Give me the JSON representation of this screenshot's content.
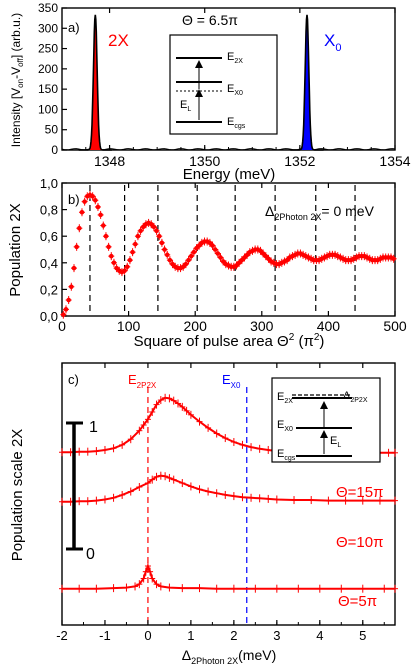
{
  "chart_data": [
    {
      "panel": "a)",
      "type": "line",
      "xlabel": "Energy (meV)",
      "ylabel": "Intensity [V_on−V_off] (arb.u.)",
      "xlim": [
        1347,
        1354
      ],
      "ylim": [
        0,
        350
      ],
      "xticks": [
        1348,
        1350,
        1352,
        1354
      ],
      "yticks": [
        0,
        50,
        100,
        150,
        200,
        250,
        300,
        350
      ],
      "grid": false,
      "series": [
        {
          "name": "2X",
          "color": "#ff0000",
          "fill": true,
          "peak_x": 1347.7,
          "peak_y": 333,
          "width": 0.09
        },
        {
          "name": "X0",
          "color": "#0000ff",
          "fill": true,
          "peak_x": 1352.15,
          "peak_y": 333,
          "width": 0.09
        }
      ],
      "peak_labels": [
        {
          "text": "2X",
          "x": 1348.15,
          "y": 300,
          "color": "#ff0000"
        },
        {
          "text": "X",
          "sub": "0",
          "x": 1352.6,
          "y": 300,
          "color": "#0000ff"
        }
      ],
      "inset": {
        "title": "Θ = 6.5π",
        "levels": [
          "E",
          "E",
          "E"
        ],
        "level_subs": [
          "2X",
          "X0",
          "cgs"
        ],
        "laser_label": "E",
        "laser_sub": "L"
      }
    },
    {
      "panel": "b)",
      "type": "scatter",
      "xlabel": "Square of pulse area Θ² (π²)",
      "ylabel": "Population 2X",
      "xlim": [
        0,
        500
      ],
      "ylim": [
        0,
        1.0
      ],
      "xticks": [
        0,
        100,
        200,
        300,
        400,
        500
      ],
      "yticks": [
        "0,0",
        "0,2",
        "0,4",
        "0,6",
        "0,8",
        "1,0"
      ],
      "ytick_values": [
        0,
        0.2,
        0.4,
        0.6,
        0.8,
        1.0
      ],
      "annotation": "Δ2Photon 2X= 0 meV",
      "annotation_main": "Δ",
      "annotation_sub": "2Photon 2X",
      "annotation_rest": "= 0 meV",
      "color": "#ff0000",
      "dashed_vlines": [
        42,
        94,
        144,
        203,
        260,
        320,
        381,
        440
      ],
      "x": [
        2,
        6,
        10,
        14,
        18,
        22,
        26,
        30,
        34,
        38,
        42,
        46,
        50,
        54,
        58,
        62,
        66,
        70,
        74,
        78,
        82,
        86,
        90,
        94,
        98,
        102,
        106,
        110,
        114,
        118,
        122,
        126,
        130,
        134,
        138,
        142,
        146,
        150,
        154,
        158,
        162,
        166,
        170,
        174,
        178,
        182,
        186,
        190,
        194,
        198,
        202,
        206,
        210,
        214,
        218,
        222,
        226,
        230,
        234,
        238,
        242,
        246,
        250,
        254,
        258,
        262,
        266,
        270,
        274,
        278,
        282,
        286,
        290,
        294,
        298,
        302,
        306,
        310,
        314,
        318,
        322,
        326,
        330,
        334,
        338,
        342,
        346,
        350,
        354,
        358,
        362,
        366,
        370,
        374,
        378,
        382,
        386,
        390,
        394,
        398,
        402,
        406,
        410,
        414,
        418,
        422,
        426,
        430,
        434,
        438,
        442,
        446,
        450,
        454,
        458,
        462,
        466,
        470,
        474,
        478,
        482,
        486,
        490,
        494,
        498
      ],
      "y": [
        0.01,
        0.05,
        0.12,
        0.22,
        0.36,
        0.52,
        0.66,
        0.78,
        0.86,
        0.9,
        0.91,
        0.9,
        0.87,
        0.82,
        0.76,
        0.68,
        0.6,
        0.52,
        0.45,
        0.4,
        0.36,
        0.34,
        0.33,
        0.34,
        0.37,
        0.42,
        0.48,
        0.54,
        0.6,
        0.64,
        0.67,
        0.69,
        0.7,
        0.69,
        0.67,
        0.64,
        0.6,
        0.55,
        0.5,
        0.46,
        0.42,
        0.39,
        0.37,
        0.36,
        0.36,
        0.37,
        0.39,
        0.42,
        0.45,
        0.48,
        0.51,
        0.53,
        0.55,
        0.56,
        0.56,
        0.55,
        0.53,
        0.5,
        0.47,
        0.44,
        0.41,
        0.39,
        0.38,
        0.37,
        0.37,
        0.38,
        0.4,
        0.42,
        0.44,
        0.46,
        0.48,
        0.49,
        0.5,
        0.5,
        0.49,
        0.47,
        0.45,
        0.43,
        0.41,
        0.4,
        0.39,
        0.39,
        0.4,
        0.41,
        0.42,
        0.44,
        0.45,
        0.46,
        0.47,
        0.47,
        0.46,
        0.45,
        0.44,
        0.43,
        0.42,
        0.42,
        0.42,
        0.43,
        0.44,
        0.45,
        0.46,
        0.46,
        0.46,
        0.45,
        0.44,
        0.43,
        0.42,
        0.42,
        0.42,
        0.43,
        0.44,
        0.45,
        0.45,
        0.45,
        0.44,
        0.43,
        0.42,
        0.42,
        0.42,
        0.43,
        0.44,
        0.44,
        0.44,
        0.44,
        0.43
      ]
    },
    {
      "panel": "c)",
      "type": "line",
      "xlabel": "Δ2Photon 2X(meV)",
      "xlabel_main": "Δ",
      "xlabel_sub": "2Photon 2X",
      "xlabel_rest": "(meV)",
      "ylabel": "Population scale 2X",
      "xlim": [
        -2,
        5.75
      ],
      "xticks": [
        -2,
        -1,
        0,
        1,
        2,
        3,
        4,
        5
      ],
      "color": "#ff0000",
      "scale_bar": {
        "top_label": "1",
        "bottom_label": "0",
        "top": 1.0,
        "bottom": 0.0
      },
      "vlines": [
        {
          "x": 0,
          "label": "E",
          "sub": "2P2X",
          "color": "#ff0000"
        },
        {
          "x": 2.3,
          "label": "E",
          "sub": "X0",
          "color": "#0000ff"
        }
      ],
      "series": [
        {
          "name": "Θ=15π",
          "label_main": "Θ=15π",
          "offset": 1.5,
          "x": [
            -2,
            -1.8,
            -1.6,
            -1.4,
            -1.2,
            -1.0,
            -0.8,
            -0.6,
            -0.4,
            -0.2,
            -0.1,
            0,
            0.1,
            0.2,
            0.3,
            0.4,
            0.5,
            0.6,
            0.7,
            0.8,
            0.9,
            1.0,
            1.2,
            1.4,
            1.6,
            1.8,
            2.0,
            2.2,
            2.4,
            2.6,
            2.8,
            3.0,
            3.3,
            3.6,
            4.0,
            4.4,
            4.8,
            5.2,
            5.6,
            5.75
          ],
          "y": [
            0.04,
            0.04,
            0.05,
            0.05,
            0.06,
            0.08,
            0.11,
            0.17,
            0.27,
            0.42,
            0.52,
            0.62,
            0.75,
            0.88,
            0.96,
            1.0,
            0.99,
            0.95,
            0.9,
            0.84,
            0.77,
            0.7,
            0.58,
            0.47,
            0.37,
            0.29,
            0.22,
            0.17,
            0.13,
            0.1,
            0.08,
            0.06,
            0.05,
            0.04,
            0.04,
            0.03,
            0.03,
            0.03,
            0.03,
            0.03
          ]
        },
        {
          "name": "Θ=10π",
          "label_main": "Θ=10π",
          "offset": 0.75,
          "x": [
            -2,
            -1.8,
            -1.6,
            -1.4,
            -1.2,
            -1.0,
            -0.8,
            -0.6,
            -0.4,
            -0.2,
            0,
            0.1,
            0.2,
            0.3,
            0.4,
            0.5,
            0.6,
            0.8,
            1.0,
            1.2,
            1.4,
            1.6,
            1.8,
            2.0,
            2.2,
            2.4,
            2.6,
            2.8,
            3.0,
            3.4,
            3.8,
            4.2,
            4.6,
            5.0,
            5.4,
            5.75
          ],
          "y": [
            0.0,
            0.0,
            0.01,
            0.01,
            0.02,
            0.04,
            0.07,
            0.12,
            0.18,
            0.26,
            0.33,
            0.39,
            0.44,
            0.46,
            0.45,
            0.42,
            0.39,
            0.33,
            0.27,
            0.22,
            0.18,
            0.15,
            0.12,
            0.1,
            0.08,
            0.07,
            0.06,
            0.05,
            0.04,
            0.03,
            0.03,
            0.02,
            0.02,
            0.02,
            0.02,
            0.02
          ]
        },
        {
          "name": "Θ=5π",
          "label_main": "Θ=5π",
          "offset": 0.0,
          "x": [
            -2,
            -1.6,
            -1.2,
            -0.8,
            -0.5,
            -0.3,
            -0.2,
            -0.1,
            -0.05,
            0,
            0.05,
            0.1,
            0.2,
            0.3,
            0.5,
            0.8,
            1.2,
            1.6,
            2.0,
            2.5,
            3.0,
            3.5,
            4.0,
            4.5,
            5.0,
            5.5,
            5.75
          ],
          "y": [
            -0.7,
            -0.7,
            -0.7,
            -0.69,
            -0.68,
            -0.66,
            -0.62,
            -0.52,
            -0.4,
            -0.3,
            -0.4,
            -0.52,
            -0.62,
            -0.66,
            -0.68,
            -0.69,
            -0.69,
            -0.7,
            -0.7,
            -0.7,
            -0.7,
            -0.7,
            -0.7,
            -0.7,
            -0.7,
            -0.7,
            -0.7
          ]
        }
      ],
      "inset": {
        "levels": [
          "E",
          "E",
          "E"
        ],
        "level_subs": [
          "2X",
          "X0",
          "cgs"
        ],
        "laser_label": "E",
        "laser_sub": "L",
        "detuning_label": "Δ",
        "detuning_sub": "2P2X"
      }
    }
  ]
}
